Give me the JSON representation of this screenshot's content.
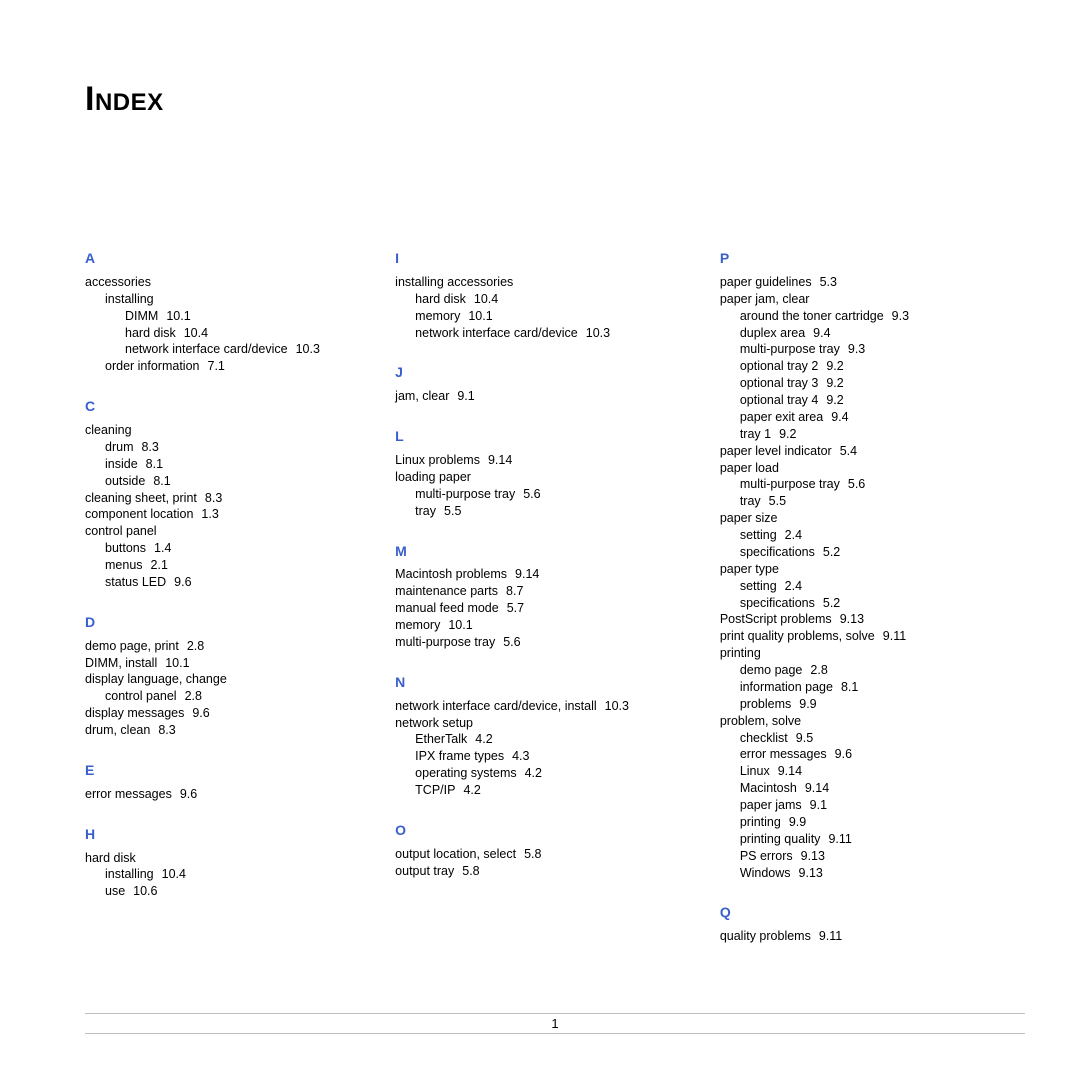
{
  "title": "Index",
  "page_number": "1",
  "columns": [
    [
      {
        "type": "letter",
        "text": "A"
      },
      {
        "type": "e0",
        "text": "accessories"
      },
      {
        "type": "e1",
        "text": "installing"
      },
      {
        "type": "e2",
        "text": "DIMM",
        "pg": "10.1"
      },
      {
        "type": "e2",
        "text": "hard disk",
        "pg": "10.4"
      },
      {
        "type": "e2",
        "text": "network interface card/device",
        "pg": "10.3"
      },
      {
        "type": "e1",
        "text": "order information",
        "pg": "7.1"
      },
      {
        "type": "letter",
        "text": "C"
      },
      {
        "type": "e0",
        "text": "cleaning"
      },
      {
        "type": "e1",
        "text": "drum",
        "pg": "8.3"
      },
      {
        "type": "e1",
        "text": "inside",
        "pg": "8.1"
      },
      {
        "type": "e1",
        "text": "outside",
        "pg": "8.1"
      },
      {
        "type": "e0",
        "text": "cleaning sheet, print",
        "pg": "8.3"
      },
      {
        "type": "e0",
        "text": "component location",
        "pg": "1.3"
      },
      {
        "type": "e0",
        "text": "control panel"
      },
      {
        "type": "e1",
        "text": "buttons",
        "pg": "1.4"
      },
      {
        "type": "e1",
        "text": "menus",
        "pg": "2.1"
      },
      {
        "type": "e1",
        "text": "status LED",
        "pg": "9.6"
      },
      {
        "type": "letter",
        "text": "D"
      },
      {
        "type": "e0",
        "text": "demo page, print",
        "pg": "2.8"
      },
      {
        "type": "e0",
        "text": "DIMM, install",
        "pg": "10.1"
      },
      {
        "type": "e0",
        "text": "display language, change"
      },
      {
        "type": "e1",
        "text": "control panel",
        "pg": "2.8"
      },
      {
        "type": "e0",
        "text": "display messages",
        "pg": "9.6"
      },
      {
        "type": "e0",
        "text": "drum, clean",
        "pg": "8.3"
      },
      {
        "type": "letter",
        "text": "E"
      },
      {
        "type": "e0",
        "text": "error messages",
        "pg": "9.6"
      },
      {
        "type": "letter",
        "text": "H"
      },
      {
        "type": "e0",
        "text": "hard disk"
      },
      {
        "type": "e1",
        "text": "installing",
        "pg": "10.4"
      },
      {
        "type": "e1",
        "text": "use",
        "pg": "10.6"
      }
    ],
    [
      {
        "type": "letter",
        "text": "I"
      },
      {
        "type": "e0",
        "text": "installing accessories"
      },
      {
        "type": "e1",
        "text": "hard disk",
        "pg": "10.4"
      },
      {
        "type": "e1",
        "text": "memory",
        "pg": "10.1"
      },
      {
        "type": "e1",
        "text": "network interface card/device",
        "pg": "10.3"
      },
      {
        "type": "letter",
        "text": "J"
      },
      {
        "type": "e0",
        "text": "jam, clear",
        "pg": "9.1"
      },
      {
        "type": "letter",
        "text": "L"
      },
      {
        "type": "e0",
        "text": "Linux problems",
        "pg": "9.14"
      },
      {
        "type": "e0",
        "text": "loading paper"
      },
      {
        "type": "e1",
        "text": "multi-purpose tray",
        "pg": "5.6"
      },
      {
        "type": "e1",
        "text": "tray",
        "pg": "5.5"
      },
      {
        "type": "letter",
        "text": "M"
      },
      {
        "type": "e0",
        "text": "Macintosh problems",
        "pg": "9.14"
      },
      {
        "type": "e0",
        "text": "maintenance parts",
        "pg": "8.7"
      },
      {
        "type": "e0",
        "text": "manual feed mode",
        "pg": "5.7"
      },
      {
        "type": "e0",
        "text": "memory",
        "pg": "10.1"
      },
      {
        "type": "e0",
        "text": "multi-purpose tray",
        "pg": "5.6"
      },
      {
        "type": "letter",
        "text": "N"
      },
      {
        "type": "e0",
        "text": "network interface card/device, install",
        "pg": "10.3"
      },
      {
        "type": "e0",
        "text": "network setup"
      },
      {
        "type": "e1",
        "text": "EtherTalk",
        "pg": "4.2"
      },
      {
        "type": "e1",
        "text": "IPX frame types",
        "pg": "4.3"
      },
      {
        "type": "e1",
        "text": "operating systems",
        "pg": "4.2"
      },
      {
        "type": "e1",
        "text": "TCP/IP",
        "pg": "4.2"
      },
      {
        "type": "letter",
        "text": "O"
      },
      {
        "type": "e0",
        "text": "output location, select",
        "pg": "5.8"
      },
      {
        "type": "e0",
        "text": "output tray",
        "pg": "5.8"
      }
    ],
    [
      {
        "type": "letter",
        "text": "P"
      },
      {
        "type": "e0",
        "text": "paper guidelines",
        "pg": "5.3"
      },
      {
        "type": "e0",
        "text": "paper jam, clear"
      },
      {
        "type": "e1",
        "text": "around the toner cartridge",
        "pg": "9.3"
      },
      {
        "type": "e1",
        "text": "duplex area",
        "pg": "9.4"
      },
      {
        "type": "e1",
        "text": "multi-purpose tray",
        "pg": "9.3"
      },
      {
        "type": "e1",
        "text": "optional tray 2",
        "pg": "9.2"
      },
      {
        "type": "e1",
        "text": "optional tray 3",
        "pg": "9.2"
      },
      {
        "type": "e1",
        "text": "optional tray 4",
        "pg": "9.2"
      },
      {
        "type": "e1",
        "text": "paper exit area",
        "pg": "9.4"
      },
      {
        "type": "e1",
        "text": "tray 1",
        "pg": "9.2"
      },
      {
        "type": "e0",
        "text": "paper level indicator",
        "pg": "5.4"
      },
      {
        "type": "e0",
        "text": "paper load"
      },
      {
        "type": "e1",
        "text": "multi-purpose tray",
        "pg": "5.6"
      },
      {
        "type": "e1",
        "text": "tray",
        "pg": "5.5"
      },
      {
        "type": "e0",
        "text": "paper size"
      },
      {
        "type": "e1",
        "text": "setting",
        "pg": "2.4"
      },
      {
        "type": "e1",
        "text": "specifications",
        "pg": "5.2"
      },
      {
        "type": "e0",
        "text": "paper type"
      },
      {
        "type": "e1",
        "text": "setting",
        "pg": "2.4"
      },
      {
        "type": "e1",
        "text": "specifications",
        "pg": "5.2"
      },
      {
        "type": "e0",
        "text": "PostScript problems",
        "pg": "9.13"
      },
      {
        "type": "e0",
        "text": "print quality problems, solve",
        "pg": "9.11"
      },
      {
        "type": "e0",
        "text": "printing"
      },
      {
        "type": "e1",
        "text": "demo page",
        "pg": "2.8"
      },
      {
        "type": "e1",
        "text": "information page",
        "pg": "8.1"
      },
      {
        "type": "e1",
        "text": "problems",
        "pg": "9.9"
      },
      {
        "type": "e0",
        "text": "problem, solve"
      },
      {
        "type": "e1",
        "text": "checklist",
        "pg": "9.5"
      },
      {
        "type": "e1",
        "text": "error messages",
        "pg": "9.6"
      },
      {
        "type": "e1",
        "text": "Linux",
        "pg": "9.14"
      },
      {
        "type": "e1",
        "text": "Macintosh",
        "pg": "9.14"
      },
      {
        "type": "e1",
        "text": "paper jams",
        "pg": "9.1"
      },
      {
        "type": "e1",
        "text": "printing",
        "pg": "9.9"
      },
      {
        "type": "e1",
        "text": "printing quality",
        "pg": "9.11"
      },
      {
        "type": "e1",
        "text": "PS errors",
        "pg": "9.13"
      },
      {
        "type": "e1",
        "text": "Windows",
        "pg": "9.13"
      },
      {
        "type": "letter",
        "text": "Q"
      },
      {
        "type": "e0",
        "text": "quality problems",
        "pg": "9.11"
      }
    ]
  ]
}
